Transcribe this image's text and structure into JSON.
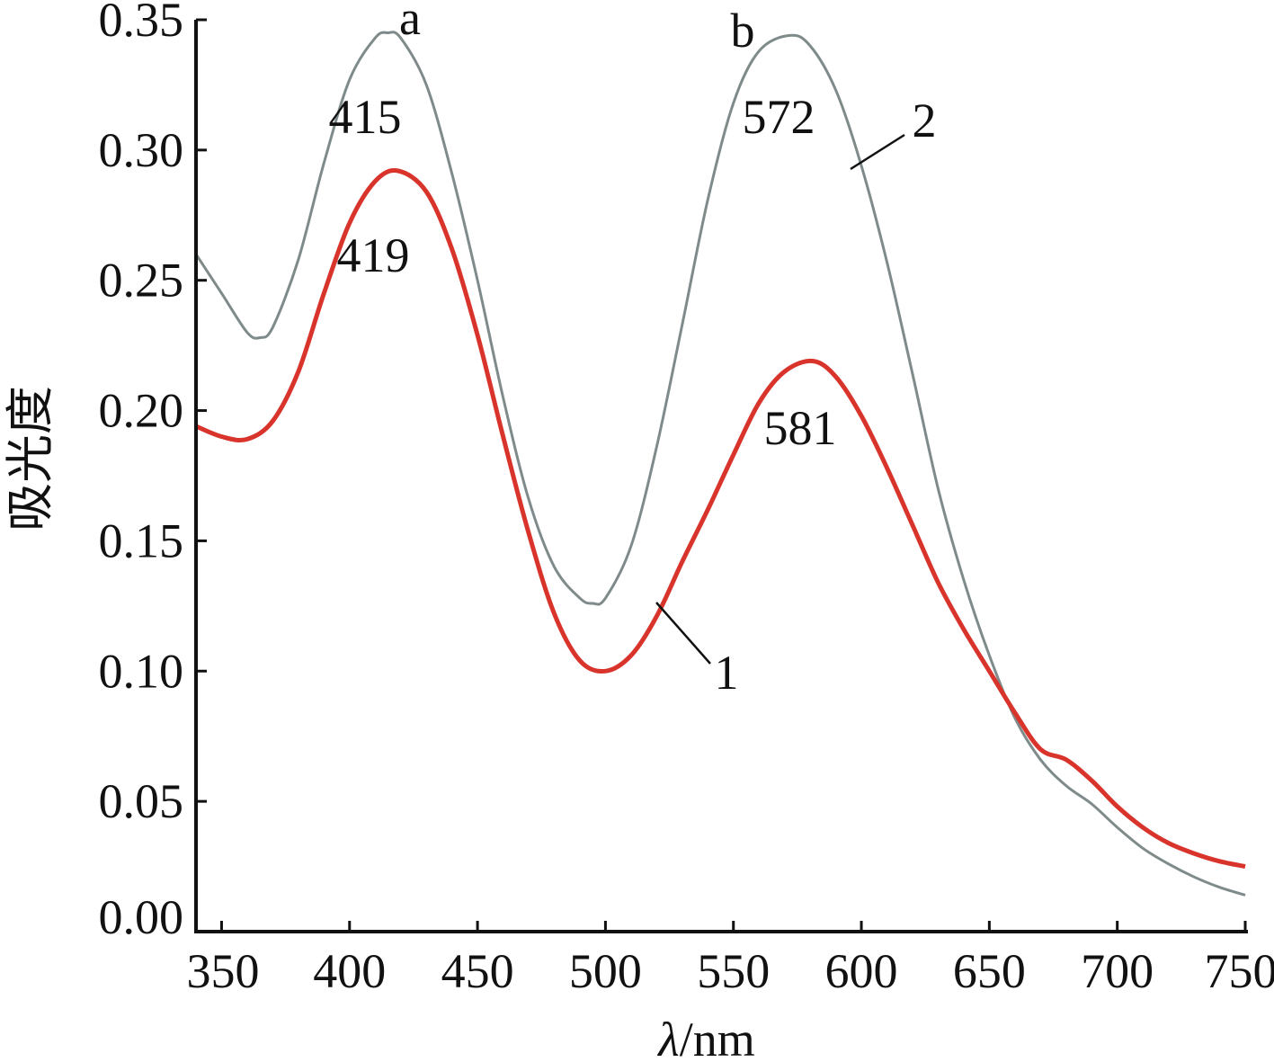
{
  "chart_data": {
    "type": "line",
    "xlabel_symbol": "λ",
    "xlabel_unit": "/nm",
    "ylabel": "吸光度",
    "xlim": [
      340,
      750
    ],
    "ylim": [
      0.0,
      0.35
    ],
    "xticks": [
      350,
      400,
      450,
      500,
      550,
      600,
      650,
      700,
      750
    ],
    "yticks": [
      0.0,
      0.05,
      0.1,
      0.15,
      0.2,
      0.25,
      0.3,
      0.35
    ],
    "xtick_labels": [
      "350",
      "400",
      "450",
      "500",
      "550",
      "600",
      "650",
      "700",
      "750"
    ],
    "ytick_labels": [
      "0.00",
      "0.05",
      "0.10",
      "0.15",
      "0.20",
      "0.25",
      "0.30",
      "0.35"
    ],
    "grid": false,
    "series": [
      {
        "name": "1",
        "color": "#d9342b",
        "x": [
          340,
          350,
          360,
          370,
          380,
          390,
          400,
          410,
          419,
          430,
          440,
          450,
          460,
          470,
          480,
          490,
          500,
          510,
          520,
          530,
          540,
          550,
          560,
          570,
          581,
          590,
          600,
          610,
          620,
          630,
          640,
          650,
          660,
          670,
          680,
          690,
          700,
          710,
          720,
          730,
          740,
          750
        ],
        "y": [
          0.194,
          0.19,
          0.189,
          0.196,
          0.215,
          0.245,
          0.272,
          0.288,
          0.292,
          0.284,
          0.262,
          0.229,
          0.19,
          0.153,
          0.122,
          0.104,
          0.1,
          0.106,
          0.121,
          0.142,
          0.162,
          0.183,
          0.203,
          0.215,
          0.219,
          0.213,
          0.198,
          0.178,
          0.156,
          0.134,
          0.116,
          0.1,
          0.084,
          0.07,
          0.066,
          0.058,
          0.048,
          0.04,
          0.034,
          0.03,
          0.027,
          0.025
        ]
      },
      {
        "name": "2",
        "color": "#7f8a8a",
        "x": [
          340,
          350,
          360,
          365,
          370,
          380,
          390,
          400,
          410,
          415,
          420,
          430,
          440,
          450,
          460,
          470,
          480,
          490,
          495,
          500,
          510,
          520,
          530,
          540,
          550,
          560,
          572,
          580,
          590,
          600,
          610,
          620,
          630,
          640,
          650,
          660,
          670,
          680,
          690,
          700,
          710,
          720,
          730,
          740,
          750
        ],
        "y": [
          0.26,
          0.245,
          0.23,
          0.228,
          0.232,
          0.258,
          0.295,
          0.327,
          0.343,
          0.345,
          0.343,
          0.325,
          0.291,
          0.25,
          0.205,
          0.166,
          0.14,
          0.128,
          0.126,
          0.128,
          0.148,
          0.186,
          0.233,
          0.281,
          0.318,
          0.338,
          0.344,
          0.34,
          0.323,
          0.294,
          0.257,
          0.214,
          0.17,
          0.135,
          0.106,
          0.082,
          0.066,
          0.056,
          0.049,
          0.04,
          0.032,
          0.026,
          0.021,
          0.017,
          0.014
        ]
      }
    ],
    "annotations": {
      "peak_a_label": "a",
      "peak_b_label": "b",
      "peak_415": "415",
      "peak_572": "572",
      "peak_419": "419",
      "peak_581": "581",
      "curve_1_label": "1",
      "curve_2_label": "2"
    }
  }
}
